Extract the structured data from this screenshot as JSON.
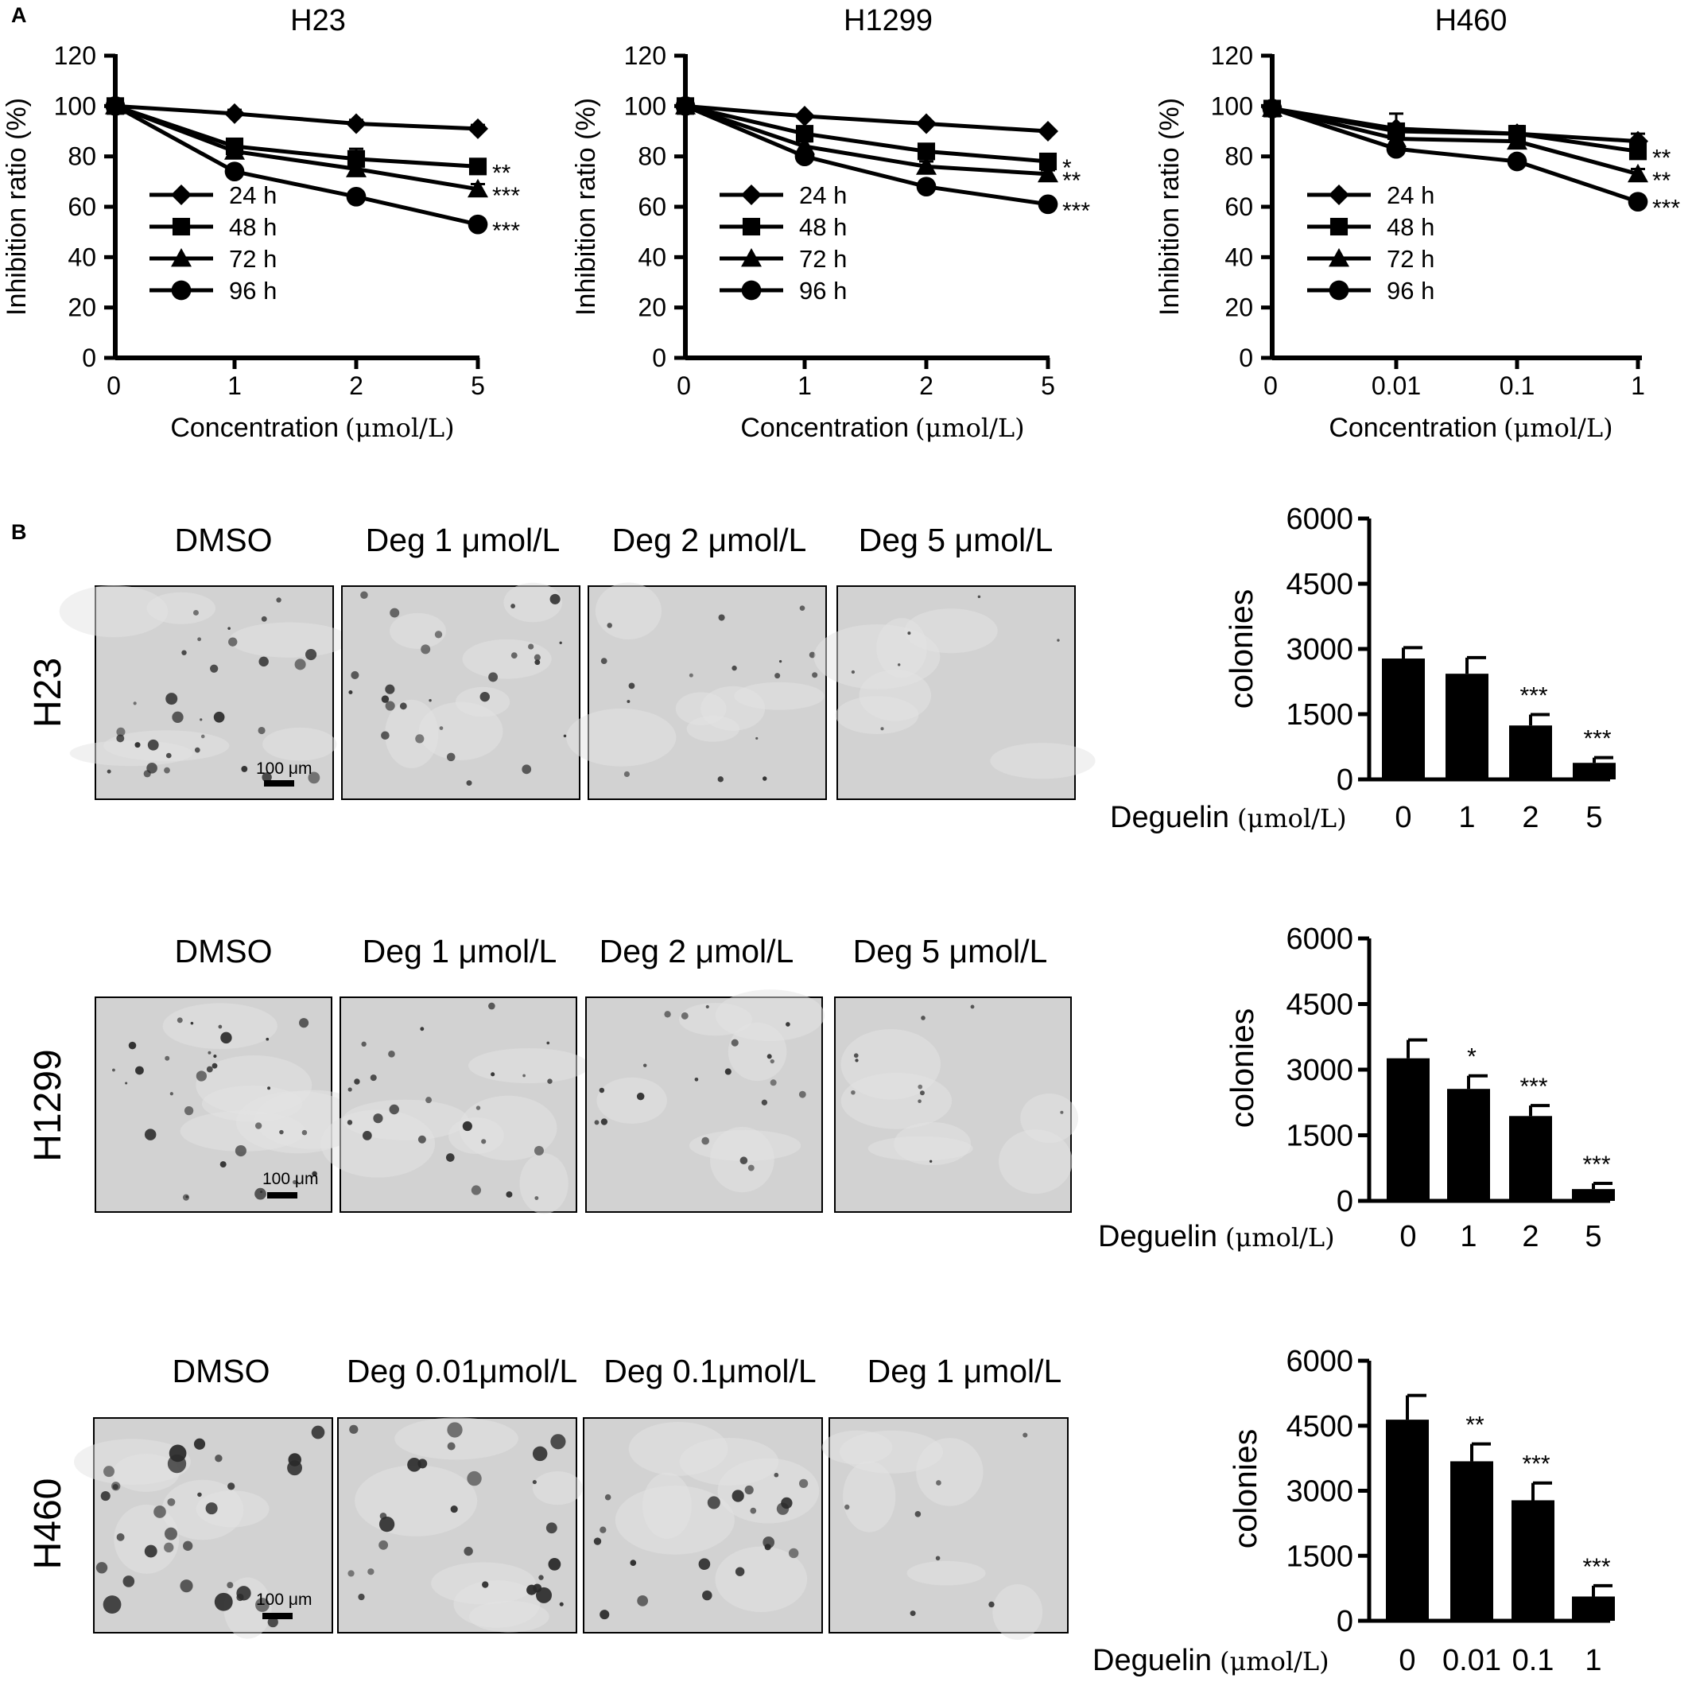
{
  "panel_labels": [
    "A",
    "B"
  ],
  "chart_data": [
    {
      "type": "line",
      "title": "H23",
      "xlabel": "Concentration",
      "xlabel_unit": "(μmol/L)",
      "ylabel": "Inhibition ratio (%)",
      "categories": [
        "0",
        "1",
        "2",
        "5"
      ],
      "ylim": [
        0,
        120
      ],
      "yticks": [
        "0",
        "20",
        "40",
        "60",
        "80",
        "100",
        "120"
      ],
      "series": [
        {
          "name": "24 h",
          "marker": "diamond",
          "values": [
            100,
            97,
            93,
            91
          ],
          "errors": [
            1,
            1.5,
            1.5,
            1.5
          ],
          "sig": ""
        },
        {
          "name": "48 h",
          "marker": "square",
          "values": [
            100,
            84,
            79,
            76
          ],
          "errors": [
            1,
            2.5,
            4,
            2
          ],
          "sig": "**"
        },
        {
          "name": "72 h",
          "marker": "triangle",
          "values": [
            100,
            82,
            75,
            67
          ],
          "errors": [
            1,
            2,
            3,
            2
          ],
          "sig": "***"
        },
        {
          "name": "96 h",
          "marker": "circle",
          "values": [
            100,
            74,
            64,
            53
          ],
          "errors": [
            1,
            2,
            2,
            2
          ],
          "sig": "***"
        }
      ]
    },
    {
      "type": "line",
      "title": "H1299",
      "xlabel": "Concentration",
      "xlabel_unit": "(μmol/L)",
      "ylabel": "Inhibition ratio (%)",
      "categories": [
        "0",
        "1",
        "2",
        "5"
      ],
      "ylim": [
        0,
        120
      ],
      "yticks": [
        "0",
        "20",
        "40",
        "60",
        "80",
        "100",
        "120"
      ],
      "series": [
        {
          "name": "24 h",
          "marker": "diamond",
          "values": [
            100,
            96,
            93,
            90
          ],
          "errors": [
            1,
            1,
            1,
            1
          ],
          "sig": ""
        },
        {
          "name": "48 h",
          "marker": "square",
          "values": [
            100,
            89,
            82,
            78
          ],
          "errors": [
            1,
            2,
            2,
            1.5
          ],
          "sig": "*"
        },
        {
          "name": "72 h",
          "marker": "triangle",
          "values": [
            100,
            84,
            76,
            73
          ],
          "errors": [
            1,
            2,
            2,
            1.5
          ],
          "sig": "**"
        },
        {
          "name": "96 h",
          "marker": "circle",
          "values": [
            100,
            80,
            68,
            61
          ],
          "errors": [
            1,
            1.5,
            1.5,
            1.5
          ],
          "sig": "***"
        }
      ]
    },
    {
      "type": "line",
      "title": "H460",
      "xlabel": "Concentration",
      "xlabel_unit": "(μmol/L)",
      "ylabel": "Inhibition ratio (%)",
      "categories": [
        "0",
        "0.01",
        "0.1",
        "1"
      ],
      "ylim": [
        0,
        120
      ],
      "yticks": [
        "0",
        "20",
        "40",
        "60",
        "80",
        "100",
        "120"
      ],
      "series": [
        {
          "name": "24 h",
          "marker": "diamond",
          "values": [
            99,
            91,
            89,
            86
          ],
          "errors": [
            1,
            6,
            3,
            3
          ],
          "sig": ""
        },
        {
          "name": "48 h",
          "marker": "square",
          "values": [
            99,
            90,
            89,
            82
          ],
          "errors": [
            1,
            3,
            3,
            3
          ],
          "sig": "**"
        },
        {
          "name": "72 h",
          "marker": "triangle",
          "values": [
            99,
            87,
            86,
            73
          ],
          "errors": [
            1,
            3,
            2,
            2
          ],
          "sig": "**"
        },
        {
          "name": "96 h",
          "marker": "circle",
          "values": [
            99,
            83,
            78,
            62
          ],
          "errors": [
            1,
            2,
            2,
            2
          ],
          "sig": "***"
        }
      ]
    },
    {
      "type": "bar",
      "title": "",
      "ylabel": "colonies",
      "xlabel": "Deguelin",
      "xlabel_unit": "(μmol/L)",
      "categories": [
        "0",
        "1",
        "2",
        "5"
      ],
      "values": [
        2780,
        2430,
        1240,
        380
      ],
      "errors": [
        250,
        370,
        250,
        120
      ],
      "sig": [
        "",
        "",
        "***",
        "***"
      ],
      "ylim": [
        0,
        6000
      ],
      "yticks": [
        "0",
        "1500",
        "3000",
        "4500",
        "6000"
      ]
    },
    {
      "type": "bar",
      "title": "",
      "ylabel": "colonies",
      "xlabel": "Deguelin",
      "xlabel_unit": "(μmol/L)",
      "categories": [
        "0",
        "1",
        "2",
        "5"
      ],
      "values": [
        3260,
        2560,
        1940,
        270
      ],
      "errors": [
        420,
        300,
        240,
        130
      ],
      "sig": [
        "",
        "*",
        "***",
        "***"
      ],
      "ylim": [
        0,
        6000
      ],
      "yticks": [
        "0",
        "1500",
        "3000",
        "4500",
        "6000"
      ]
    },
    {
      "type": "bar",
      "title": "",
      "ylabel": "colonies",
      "xlabel": "Deguelin",
      "xlabel_unit": "(μmol/L)",
      "categories": [
        "0",
        "0.01",
        "0.1",
        "1"
      ],
      "values": [
        4640,
        3680,
        2780,
        560
      ],
      "errors": [
        560,
        400,
        400,
        250
      ],
      "sig": [
        "",
        "**",
        "***",
        "***"
      ],
      "ylim": [
        0,
        6000
      ],
      "yticks": [
        "0",
        "1500",
        "3000",
        "4500",
        "6000"
      ]
    }
  ],
  "image_grid": {
    "rows": [
      {
        "label": "H23",
        "columns": [
          "DMSO",
          "Deg 1 μmol/L",
          "Deg 2 μmol/L",
          "Deg 5 μmol/L"
        ],
        "colony_density": [
          1.0,
          0.85,
          0.45,
          0.12
        ]
      },
      {
        "label": "H1299",
        "columns": [
          "DMSO",
          "Deg 1 μmol/L",
          "Deg 2 μmol/L",
          "Deg 5 μmol/L"
        ],
        "colony_density": [
          1.0,
          0.8,
          0.6,
          0.25
        ]
      },
      {
        "label": "H460",
        "columns": [
          "DMSO",
          "Deg 0.01μmol/L",
          "Deg 0.1μmol/L",
          "Deg 1 μmol/L"
        ],
        "colony_density": [
          1.0,
          0.8,
          0.6,
          0.15
        ]
      }
    ],
    "scale_bar": "100 μm",
    "colors": {
      "background": "#d2d2d2",
      "colony": "#2a2a2a"
    }
  }
}
